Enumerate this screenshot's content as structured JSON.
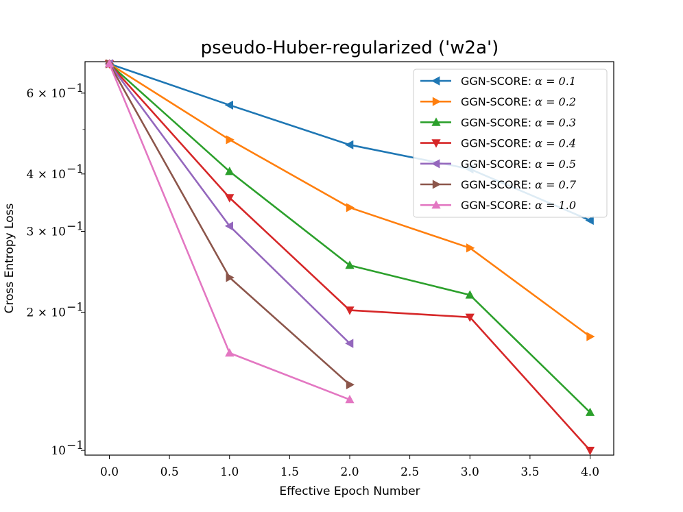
{
  "chart_data": {
    "type": "line",
    "title": "pseudo-Huber-regularized ('w2a')",
    "xlabel": "Effective Epoch Number",
    "ylabel": "Cross Entropy Loss",
    "yscale": "log",
    "xlim": [
      -0.2,
      4.2
    ],
    "ylim": [
      0.098,
      0.7
    ],
    "xticks": [
      0.0,
      0.5,
      1.0,
      1.5,
      2.0,
      2.5,
      3.0,
      3.5,
      4.0
    ],
    "xtick_labels": [
      "0.0",
      "0.5",
      "1.0",
      "1.5",
      "2.0",
      "2.5",
      "3.0",
      "3.5",
      "4.0"
    ],
    "yticks": [
      {
        "value": 0.1,
        "mant": "",
        "exp": "−1"
      },
      {
        "value": 0.2,
        "mant": "2 × ",
        "exp": "−1"
      },
      {
        "value": 0.3,
        "mant": "3 × ",
        "exp": "−1"
      },
      {
        "value": 0.4,
        "mant": "4 × ",
        "exp": "−1"
      },
      {
        "value": 0.6,
        "mant": "6 × ",
        "exp": "−1"
      }
    ],
    "minor_yticks": [
      0.5
    ],
    "legend_position": "upper right",
    "series": [
      {
        "name": "GGN-SCORE: α = 0.1",
        "prefix": "GGN-SCORE: ",
        "alpha_text": "α = 0.1",
        "color": "#1f77b4",
        "marker": "triangle-left",
        "x": [
          0,
          1,
          2,
          3,
          4
        ],
        "y": [
          0.695,
          0.565,
          0.463,
          0.41,
          0.317
        ]
      },
      {
        "name": "GGN-SCORE: α = 0.2",
        "prefix": "GGN-SCORE: ",
        "alpha_text": "α = 0.2",
        "color": "#ff7f0e",
        "marker": "triangle-right",
        "x": [
          0,
          1,
          2,
          3,
          4
        ],
        "y": [
          0.695,
          0.475,
          0.338,
          0.276,
          0.177
        ]
      },
      {
        "name": "GGN-SCORE: α = 0.3",
        "prefix": "GGN-SCORE: ",
        "alpha_text": "α = 0.3",
        "color": "#2ca02c",
        "marker": "triangle-up",
        "x": [
          0,
          1,
          2,
          3,
          4
        ],
        "y": [
          0.695,
          0.405,
          0.253,
          0.218,
          0.121
        ]
      },
      {
        "name": "GGN-SCORE: α = 0.4",
        "prefix": "GGN-SCORE: ",
        "alpha_text": "α = 0.4",
        "color": "#d62728",
        "marker": "triangle-down",
        "x": [
          0,
          1,
          2,
          3,
          4
        ],
        "y": [
          0.695,
          0.355,
          0.202,
          0.195,
          0.1
        ]
      },
      {
        "name": "GGN-SCORE: α = 0.5",
        "prefix": "GGN-SCORE: ",
        "alpha_text": "α = 0.5",
        "color": "#9467bd",
        "marker": "triangle-left",
        "x": [
          0,
          1,
          2
        ],
        "y": [
          0.695,
          0.308,
          0.171
        ]
      },
      {
        "name": "GGN-SCORE: α = 0.7",
        "prefix": "GGN-SCORE: ",
        "alpha_text": "α = 0.7",
        "color": "#8c564b",
        "marker": "triangle-right",
        "x": [
          0,
          1,
          2
        ],
        "y": [
          0.695,
          0.238,
          0.139
        ]
      },
      {
        "name": "GGN-SCORE: α = 1.0",
        "prefix": "GGN-SCORE: ",
        "alpha_text": "α = 1.0",
        "color": "#e377c2",
        "marker": "triangle-up",
        "x": [
          0,
          1,
          2
        ],
        "y": [
          0.695,
          0.163,
          0.129
        ]
      }
    ]
  }
}
